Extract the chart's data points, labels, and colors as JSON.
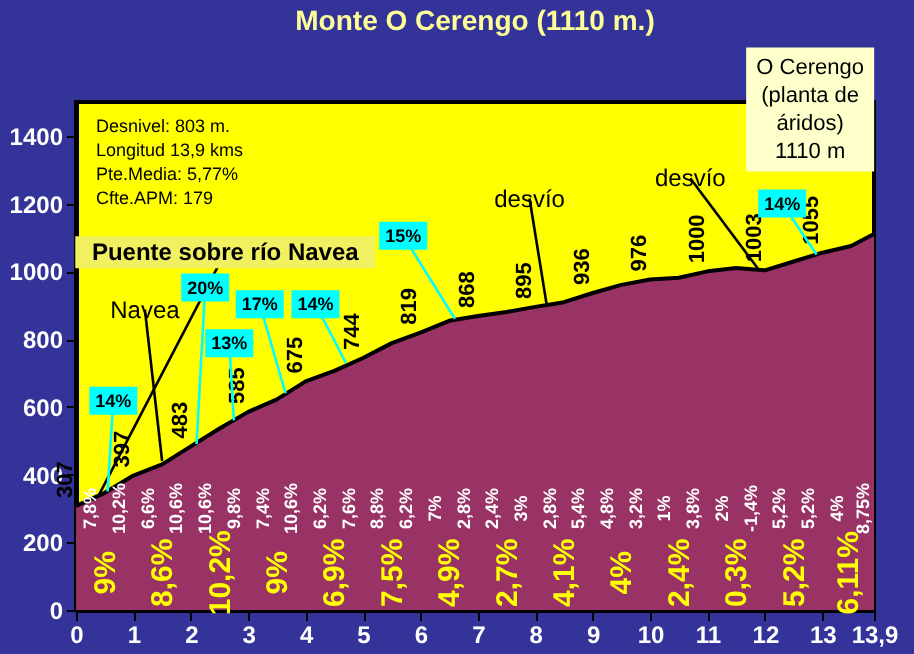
{
  "chart_data": {
    "type": "area",
    "title": "Monte O Cerengo (1110 m.)",
    "x": [
      0,
      0.5,
      1,
      1.5,
      2,
      2.5,
      3,
      3.5,
      4,
      4.5,
      5,
      5.5,
      6,
      6.5,
      7,
      7.5,
      8,
      8.5,
      9,
      9.5,
      10,
      10.5,
      11,
      11.5,
      12,
      12.5,
      13,
      13.5,
      13.9
    ],
    "series": [
      {
        "color": "#993366",
        "values": [
          307,
          346,
          397,
          430,
          483,
          536,
          585,
          622,
          675,
          706,
          744,
          788,
          819,
          854,
          868,
          880,
          895,
          909,
          936,
          960,
          976,
          981,
          1000,
          1010,
          1003,
          1029,
          1055,
          1075,
          1110
        ],
        "value_labels": [
          "307",
          null,
          "397",
          null,
          "483",
          null,
          "585",
          null,
          "675",
          null,
          "744",
          null,
          "819",
          null,
          "868",
          null,
          "895",
          null,
          "936",
          null,
          "976",
          null,
          "1000",
          null,
          "1003",
          null,
          "1055",
          null,
          null
        ]
      }
    ],
    "xlim": [
      0,
      13.9
    ],
    "xticks": [
      0,
      1,
      2,
      3,
      4,
      5,
      6,
      7,
      8,
      9,
      10,
      11,
      12,
      13,
      {
        "value": 13.9,
        "label": "13,9"
      }
    ],
    "ylim": [
      0,
      1500
    ],
    "yticks": [
      0,
      200,
      400,
      600,
      800,
      1000,
      1200,
      1400
    ],
    "annotations": [
      "Desnivel: 803 m.\nLongitud 13,9 kms\nPte.Media: 5,77%\nCfte.APM: 179",
      "O Cerengo\n(planta de\náridos)\n1110 m",
      {
        "text": "Puente sobre río Navea",
        "x": 0.4,
        "y": 340
      },
      {
        "text": "Navea",
        "x": 1.5,
        "y": 440
      },
      {
        "text": "desvío",
        "x": 8.2,
        "y": 900
      },
      {
        "text": "desvío",
        "x": 11.9,
        "y": 1003
      },
      {
        "text": "14%",
        "x": 0.55,
        "y": 350
      },
      {
        "text": "20%",
        "x": 2.1,
        "y": 490
      },
      {
        "text": "13%",
        "x": 2.75,
        "y": 560
      },
      {
        "text": "17%",
        "x": 3.65,
        "y": 640
      },
      {
        "text": "14%",
        "x": 4.7,
        "y": 730
      },
      {
        "text": "15%",
        "x": 6.6,
        "y": 860
      },
      {
        "text": "14%",
        "x": 12.9,
        "y": 1050
      },
      "7,8%",
      "10,2%",
      "6,6%",
      "10,6%",
      "10,6%",
      "9,8%",
      "7,4%",
      "10,6%",
      "6,2%",
      "7,6%",
      "8,8%",
      "6,2%",
      "7%",
      "2,8%",
      "2,4%",
      "3%",
      "2,8%",
      "5,4%",
      "4,8%",
      "3,2%",
      "1%",
      "3,8%",
      "2%",
      "-1,4%",
      "5,2%",
      "5,2%",
      "4%",
      "8,75%",
      "9%",
      "8,6%",
      "10,2%",
      "9%",
      "6,9%",
      "7,5%",
      "4,9%",
      "2,7%",
      "4,1%",
      "4%",
      "2,4%",
      "0,3%",
      "5,2%",
      "6,11%"
    ]
  }
}
